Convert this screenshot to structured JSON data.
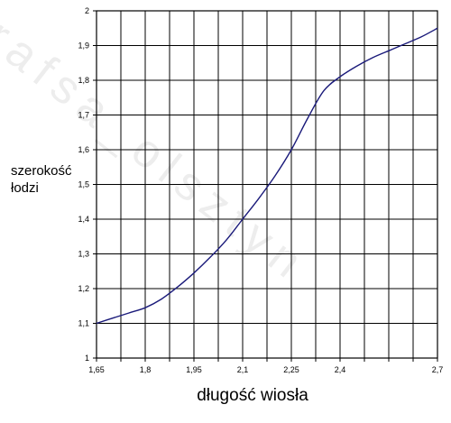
{
  "chart_data": {
    "type": "line",
    "xlabel": "długość wiosła",
    "ylabel_line1": "szerokość",
    "ylabel_line2": "łodzi",
    "watermark": "rafsa_olsztyn",
    "x_ticks": [
      "1,65",
      "1,8",
      "1,95",
      "2,1",
      "2,25",
      "2,4",
      "2,7"
    ],
    "x_tick_values": [
      1.65,
      1.8,
      1.95,
      2.1,
      2.25,
      2.4,
      2.7
    ],
    "x_grid_values": [
      1.65,
      1.725,
      1.8,
      1.875,
      1.95,
      2.025,
      2.1,
      2.175,
      2.25,
      2.325,
      2.4,
      2.475,
      2.55,
      2.625,
      2.7
    ],
    "y_ticks": [
      "1",
      "1,1",
      "1,2",
      "1,3",
      "1,4",
      "1,5",
      "1,6",
      "1,7",
      "1,8",
      "1,9",
      "2"
    ],
    "y_tick_values": [
      1.0,
      1.1,
      1.2,
      1.3,
      1.4,
      1.5,
      1.6,
      1.7,
      1.8,
      1.9,
      2.0
    ],
    "xlim": [
      1.65,
      2.7
    ],
    "ylim": [
      1.0,
      2.0
    ],
    "grid": true,
    "colors": {
      "line": "#1a1a7a",
      "grid": "#000000"
    },
    "series": [
      {
        "x": [
          1.65,
          1.7,
          1.75,
          1.8,
          1.85,
          1.9,
          1.95,
          2.0,
          2.05,
          2.1,
          2.15,
          2.2,
          2.25,
          2.3,
          2.35,
          2.4,
          2.45,
          2.5,
          2.55,
          2.6,
          2.65,
          2.7
        ],
        "y": [
          1.1,
          1.115,
          1.13,
          1.145,
          1.17,
          1.205,
          1.245,
          1.29,
          1.34,
          1.4,
          1.46,
          1.525,
          1.6,
          1.69,
          1.77,
          1.81,
          1.84,
          1.865,
          1.885,
          1.905,
          1.925,
          1.95
        ]
      }
    ]
  }
}
